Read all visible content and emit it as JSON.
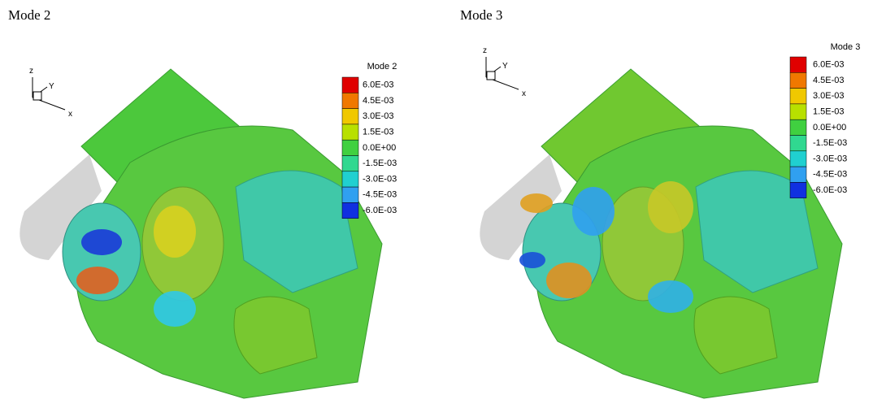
{
  "panels": [
    {
      "title": "Mode 2",
      "legend_title": "Mode 2",
      "legend_labels": [
        "6.0E-03",
        "4.5E-03",
        "3.0E-03",
        "1.5E-03",
        "0.0E+00",
        "-1.5E-03",
        "-3.0E-03",
        "-4.5E-03",
        "-6.0E-03"
      ],
      "axis_labels": {
        "z": "z",
        "y": "Y",
        "x": "x"
      }
    },
    {
      "title": "Mode 3",
      "legend_title": "Mode 3",
      "legend_labels": [
        "6.0E-03",
        "4.5E-03",
        "3.0E-03",
        "1.5E-03",
        "0.0E+00",
        "-1.5E-03",
        "-3.0E-03",
        "-4.5E-03",
        "-6.0E-03"
      ],
      "axis_labels": {
        "z": "z",
        "y": "Y",
        "x": "x"
      }
    }
  ]
}
